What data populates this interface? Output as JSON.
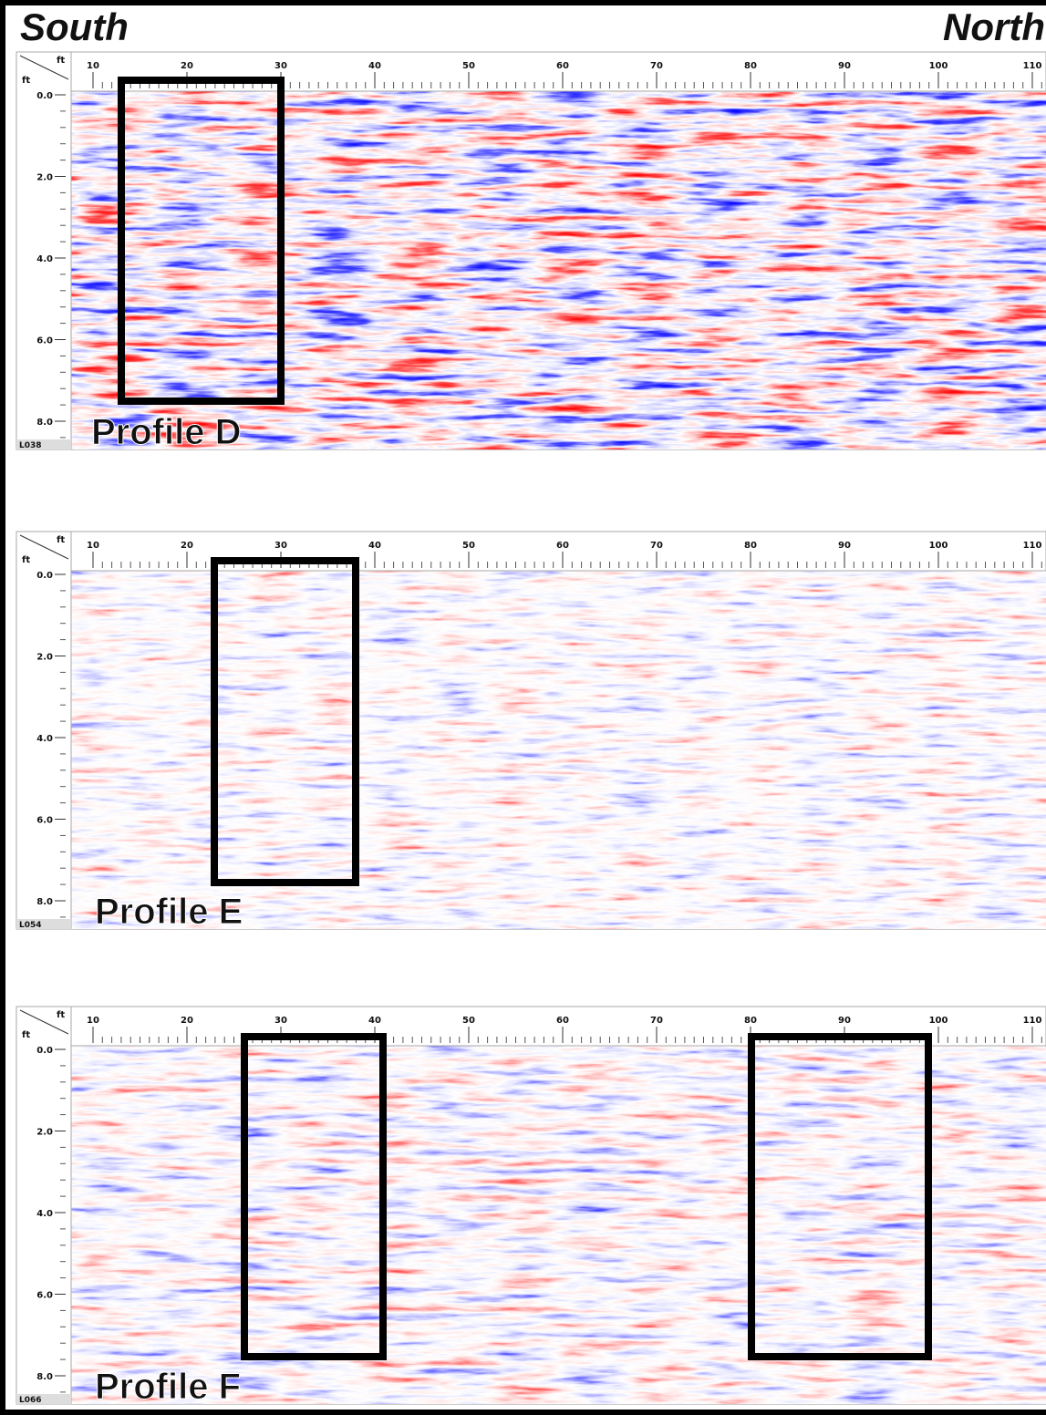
{
  "header": {
    "left": "South",
    "right": "North"
  },
  "profiles": [
    {
      "label": "Profile D",
      "line_id": "L038",
      "x_unit": "ft",
      "y_unit": "ft",
      "x_ticks": [
        "10",
        "20",
        "30",
        "40",
        "50",
        "60",
        "70",
        "80",
        "90",
        "100",
        "110"
      ],
      "depth_ticks": [
        "0.0",
        "2.0",
        "4.0",
        "6.0",
        "8.0"
      ]
    },
    {
      "label": "Profile E",
      "line_id": "L054",
      "x_unit": "ft",
      "y_unit": "ft",
      "x_ticks": [
        "10",
        "20",
        "30",
        "40",
        "50",
        "60",
        "70",
        "80",
        "90",
        "100",
        "110"
      ],
      "depth_ticks": [
        "0.0",
        "2.0",
        "4.0",
        "6.0",
        "8.0"
      ]
    },
    {
      "label": "Profile F",
      "line_id": "L066",
      "x_unit": "ft",
      "y_unit": "ft",
      "x_ticks": [
        "10",
        "20",
        "30",
        "40",
        "50",
        "60",
        "70",
        "80",
        "90",
        "100",
        "110"
      ],
      "depth_ticks": [
        "0.0",
        "2.0",
        "4.0",
        "6.0",
        "8.0"
      ]
    }
  ]
}
